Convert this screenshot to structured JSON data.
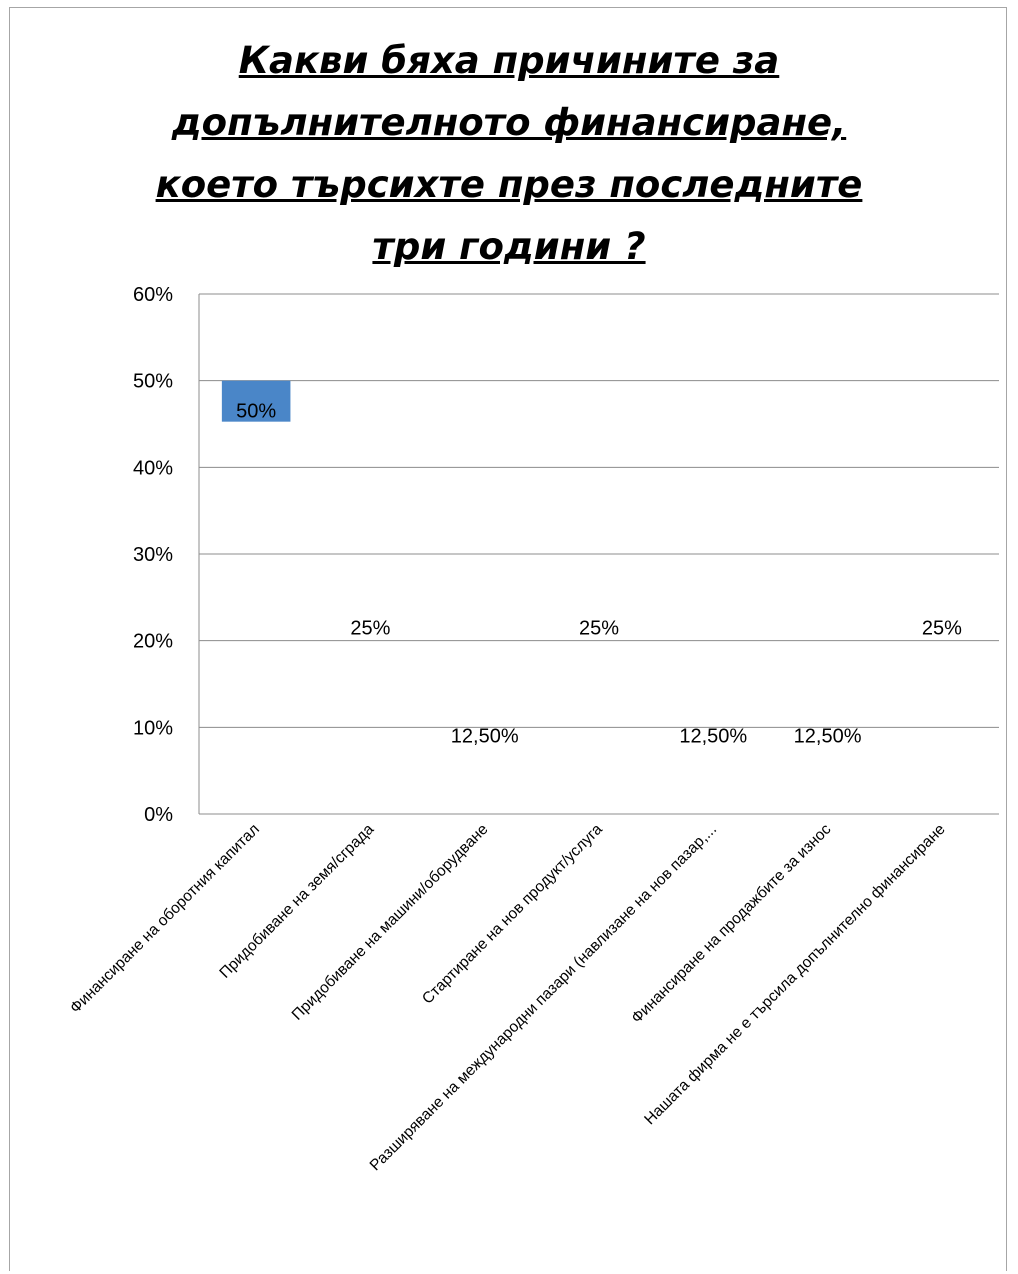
{
  "chart_data": {
    "type": "bar",
    "title": "Какви бяха причините за допълнителното финансиране, което търсихте през последните три години ?",
    "title_lines": [
      "Какви бяха причините за",
      "допълнителното финансиране,",
      "което търсихте през последните",
      "три години ?"
    ],
    "categories": [
      "Финансиране на оборотния капитал",
      "Придобиване на земя/сграда",
      "Придобиване на машини/оборудване",
      "Стартиране на нов продукт/услуга",
      "Разширяване на международни пазари (навлизане на нов пазар,...",
      "Финансиране на продажбите за износ",
      "Нашата фирма не е търсила допълнително финансиране"
    ],
    "values": [
      0.5,
      0.25,
      0.125,
      0.25,
      0.125,
      0.125,
      0.25
    ],
    "data_labels": [
      "50%",
      "25%",
      "12,50%",
      "25%",
      "12,50%",
      "12,50%",
      "25%"
    ],
    "ylim": [
      0,
      0.6
    ],
    "yticks": [
      0,
      0.1,
      0.2,
      0.3,
      0.4,
      0.5,
      0.6
    ],
    "ytick_labels": [
      "0%",
      "10%",
      "20%",
      "30%",
      "40%",
      "50%",
      "60%"
    ],
    "grid": true,
    "bar_color": "#4a86c8",
    "gridline_color": "#8c8c8c"
  }
}
